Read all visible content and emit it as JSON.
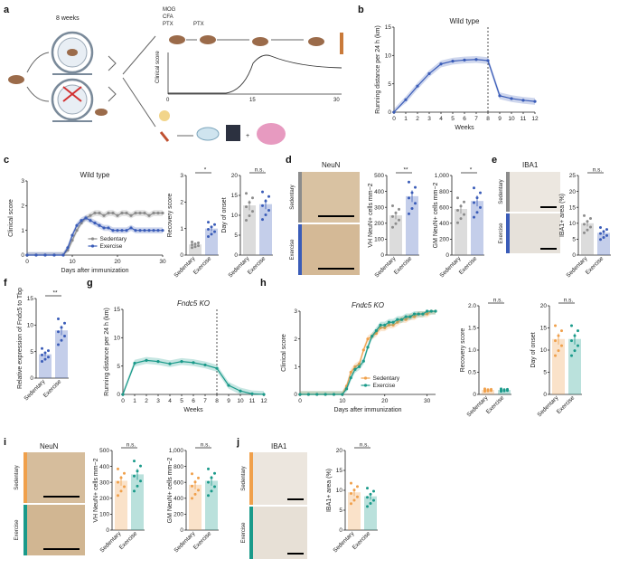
{
  "panels": {
    "a": {
      "letter": "a",
      "weeks_label": "8 weeks",
      "treat1": "MOG",
      "treat2": "CFA",
      "treat3": "PTX",
      "treat4": "PTX",
      "ylabel": "Clinical score",
      "ticks": [
        "0",
        "15",
        "30"
      ]
    },
    "b": {
      "letter": "b"
    },
    "c": {
      "letter": "c"
    },
    "d": {
      "letter": "d",
      "stain": "NeuN",
      "row1": "Sedentary",
      "row2": "Exercise"
    },
    "e": {
      "letter": "e",
      "stain": "IBA1",
      "row1": "Sedentary",
      "row2": "Exercise"
    },
    "f": {
      "letter": "f"
    },
    "g": {
      "letter": "g"
    },
    "h": {
      "letter": "h"
    },
    "i": {
      "letter": "i",
      "stain": "NeuN",
      "row1": "Sedentary",
      "row2": "Exercise"
    },
    "j": {
      "letter": "j",
      "stain": "IBA1",
      "row1": "Sedentary",
      "row2": "Exercise"
    }
  },
  "colors": {
    "sedentary_wt": "#8c8c8c",
    "exercise_wt": "#3a5cb8",
    "sedentary_ko": "#f0a04b",
    "exercise_ko": "#1a9a8a"
  },
  "chart_data": [
    {
      "id": "b",
      "type": "line",
      "title": "Wild type",
      "xlabel": "Weeks",
      "ylabel": "Running distance per 24 h (km)",
      "x": [
        0,
        1,
        2,
        3,
        4,
        5,
        6,
        7,
        8,
        9,
        10,
        11,
        12
      ],
      "xlim": [
        0,
        12
      ],
      "ylim": [
        0,
        15
      ],
      "yticks": [
        0,
        5,
        10,
        15
      ],
      "series": [
        {
          "values": [
            0,
            2.2,
            4.6,
            6.8,
            8.5,
            9.0,
            9.2,
            9.3,
            9.1,
            2.9,
            2.4,
            2.1,
            1.9
          ]
        }
      ],
      "annotations": [
        "dashed line at week 8"
      ]
    },
    {
      "id": "c-curve",
      "type": "line",
      "title": "Wild type",
      "xlabel": "Days after immunization",
      "ylabel": "Clinical score",
      "x": [
        0,
        2,
        4,
        6,
        8,
        9,
        10,
        11,
        12,
        13,
        14,
        15,
        16,
        17,
        18,
        19,
        20,
        21,
        22,
        23,
        24,
        25,
        26,
        27,
        28,
        29,
        30
      ],
      "xlim": [
        0,
        30
      ],
      "ylim": [
        0,
        3
      ],
      "yticks": [
        0,
        1,
        2,
        3
      ],
      "xticks": [
        0,
        10,
        20,
        30
      ],
      "series": [
        {
          "name": "Sedentary",
          "values": [
            0,
            0,
            0,
            0,
            0,
            0.2,
            0.6,
            1.0,
            1.3,
            1.5,
            1.6,
            1.7,
            1.7,
            1.6,
            1.7,
            1.7,
            1.6,
            1.7,
            1.7,
            1.6,
            1.7,
            1.7,
            1.7,
            1.6,
            1.7,
            1.7,
            1.7
          ]
        },
        {
          "name": "Exercise",
          "values": [
            0,
            0,
            0,
            0,
            0,
            0.3,
            0.8,
            1.2,
            1.4,
            1.5,
            1.4,
            1.3,
            1.2,
            1.1,
            1.1,
            1.0,
            1.0,
            1.0,
            1.0,
            1.1,
            1.0,
            1.0,
            1.0,
            1.0,
            1.0,
            1.0,
            1.0
          ]
        }
      ]
    },
    {
      "id": "c-recovery",
      "type": "bar",
      "ylabel": "Recovery score",
      "categories": [
        "Sedentary",
        "Exercise"
      ],
      "values": [
        0.4,
        1.0
      ],
      "ylim": [
        0,
        3
      ],
      "yticks": [
        0,
        1,
        2,
        3
      ],
      "sig": "*"
    },
    {
      "id": "c-onset",
      "type": "bar",
      "ylabel": "Day of onset",
      "categories": [
        "Sedentary",
        "Exercise"
      ],
      "values": [
        12.5,
        12.8
      ],
      "ylim": [
        0,
        20
      ],
      "yticks": [
        0,
        5,
        10,
        15,
        20
      ],
      "sig": "n.s."
    },
    {
      "id": "d-vh",
      "type": "bar",
      "ylabel": "VH NeuN+ cells mm−2",
      "categories": [
        "Sedentary",
        "Exercise"
      ],
      "values": [
        250,
        370
      ],
      "ylim": [
        0,
        500
      ],
      "yticks": [
        0,
        100,
        200,
        300,
        400,
        500
      ],
      "sig": "**"
    },
    {
      "id": "d-gm",
      "type": "bar",
      "ylabel": "GM NeuN+ cells mm−2",
      "categories": [
        "Sedentary",
        "Exercise"
      ],
      "values": [
        580,
        680
      ],
      "ylim": [
        0,
        1000
      ],
      "yticks": [
        0,
        200,
        400,
        600,
        800,
        1000
      ],
      "ytick_labels": [
        "0",
        "200",
        "400",
        "600",
        "800",
        "1,000"
      ],
      "sig": "*"
    },
    {
      "id": "e-iba1",
      "type": "bar",
      "ylabel": "IBA1+ area (%)",
      "categories": [
        "Sedentary",
        "Exercise"
      ],
      "values": [
        10,
        7
      ],
      "ylim": [
        0,
        25
      ],
      "yticks": [
        0,
        5,
        10,
        15,
        20,
        25
      ],
      "sig": "n.s."
    },
    {
      "id": "f",
      "type": "bar",
      "ylabel": "Relative expression of Fndc5 to Tbp",
      "categories": [
        "Sedentary",
        "Exercise"
      ],
      "values": [
        4.5,
        9.0
      ],
      "ylim": [
        0,
        15
      ],
      "yticks": [
        0,
        5,
        10,
        15
      ],
      "sig": "**"
    },
    {
      "id": "g",
      "type": "line",
      "title": "Fndc5 KO",
      "xlabel": "Weeks",
      "ylabel": "Running distance per 24 h (km)",
      "x": [
        0,
        1,
        2,
        3,
        4,
        5,
        6,
        7,
        8,
        9,
        10,
        11,
        12
      ],
      "xlim": [
        0,
        12
      ],
      "ylim": [
        0,
        15
      ],
      "yticks": [
        0,
        5,
        10,
        15
      ],
      "series": [
        {
          "values": [
            0,
            5.5,
            6.0,
            5.8,
            5.4,
            5.8,
            5.6,
            5.2,
            4.6,
            1.6,
            0.6,
            0.1,
            0
          ]
        }
      ],
      "annotations": [
        "dashed line at week 8"
      ]
    },
    {
      "id": "h-curve",
      "type": "line",
      "title": "Fndc5 KO",
      "xlabel": "Days after immunization",
      "ylabel": "Clinical score",
      "x": [
        0,
        2,
        4,
        6,
        8,
        10,
        11,
        12,
        13,
        14,
        15,
        16,
        17,
        18,
        19,
        20,
        21,
        22,
        23,
        24,
        25,
        26,
        27,
        28,
        29,
        30,
        31,
        32
      ],
      "xlim": [
        0,
        32
      ],
      "ylim": [
        0,
        3
      ],
      "yticks": [
        0,
        1,
        2,
        3
      ],
      "xticks": [
        0,
        10,
        20,
        30
      ],
      "series": [
        {
          "name": "Sedentary",
          "values": [
            0,
            0,
            0,
            0,
            0,
            0,
            0.3,
            0.8,
            1.0,
            1.1,
            1.6,
            2.0,
            2.1,
            2.2,
            2.4,
            2.4,
            2.5,
            2.5,
            2.6,
            2.7,
            2.7,
            2.8,
            2.8,
            2.9,
            2.9,
            2.9,
            3.0,
            3.0
          ]
        },
        {
          "name": "Exercise",
          "values": [
            0,
            0,
            0,
            0,
            0,
            0,
            0.2,
            0.6,
            0.9,
            1.0,
            1.2,
            1.7,
            2.1,
            2.3,
            2.5,
            2.5,
            2.6,
            2.6,
            2.7,
            2.7,
            2.8,
            2.8,
            2.9,
            2.9,
            2.9,
            3.0,
            3.0,
            3.0
          ]
        }
      ]
    },
    {
      "id": "h-recovery",
      "type": "bar",
      "ylabel": "Recovery score",
      "categories": [
        "Sedentary",
        "Exercise"
      ],
      "values": [
        0.1,
        0.1
      ],
      "ylim": [
        0,
        2
      ],
      "yticks": [
        0,
        0.5,
        1.0,
        1.5,
        2.0
      ],
      "ytick_labels": [
        "0",
        "0.5",
        "1.0",
        "1.5",
        "2.0"
      ],
      "sig": "n.s."
    },
    {
      "id": "h-onset",
      "type": "bar",
      "ylabel": "Day of onset",
      "categories": [
        "Sedentary",
        "Exercise"
      ],
      "values": [
        12.5,
        12.5
      ],
      "ylim": [
        0,
        20
      ],
      "yticks": [
        0,
        5,
        10,
        15,
        20
      ],
      "sig": "n.s."
    },
    {
      "id": "i-vh",
      "type": "bar",
      "ylabel": "VH NeuN+ cells mm−2",
      "categories": [
        "Sedentary",
        "Exercise"
      ],
      "values": [
        310,
        350
      ],
      "ylim": [
        0,
        500
      ],
      "yticks": [
        0,
        100,
        200,
        300,
        400,
        500
      ],
      "sig": "n.s."
    },
    {
      "id": "i-gm",
      "type": "bar",
      "ylabel": "GM NeuN+ cells mm−2",
      "categories": [
        "Sedentary",
        "Exercise"
      ],
      "values": [
        570,
        620
      ],
      "ylim": [
        0,
        1000
      ],
      "yticks": [
        0,
        200,
        400,
        600,
        800,
        1000
      ],
      "ytick_labels": [
        "0",
        "200",
        "400",
        "600",
        "800",
        "1,000"
      ],
      "sig": "n.s."
    },
    {
      "id": "j-iba1",
      "type": "bar",
      "ylabel": "IBA1+ area (%)",
      "categories": [
        "Sedentary",
        "Exercise"
      ],
      "values": [
        9.5,
        8.5
      ],
      "ylim": [
        0,
        20
      ],
      "yticks": [
        0,
        5,
        10,
        15,
        20
      ],
      "sig": "n.s."
    }
  ]
}
